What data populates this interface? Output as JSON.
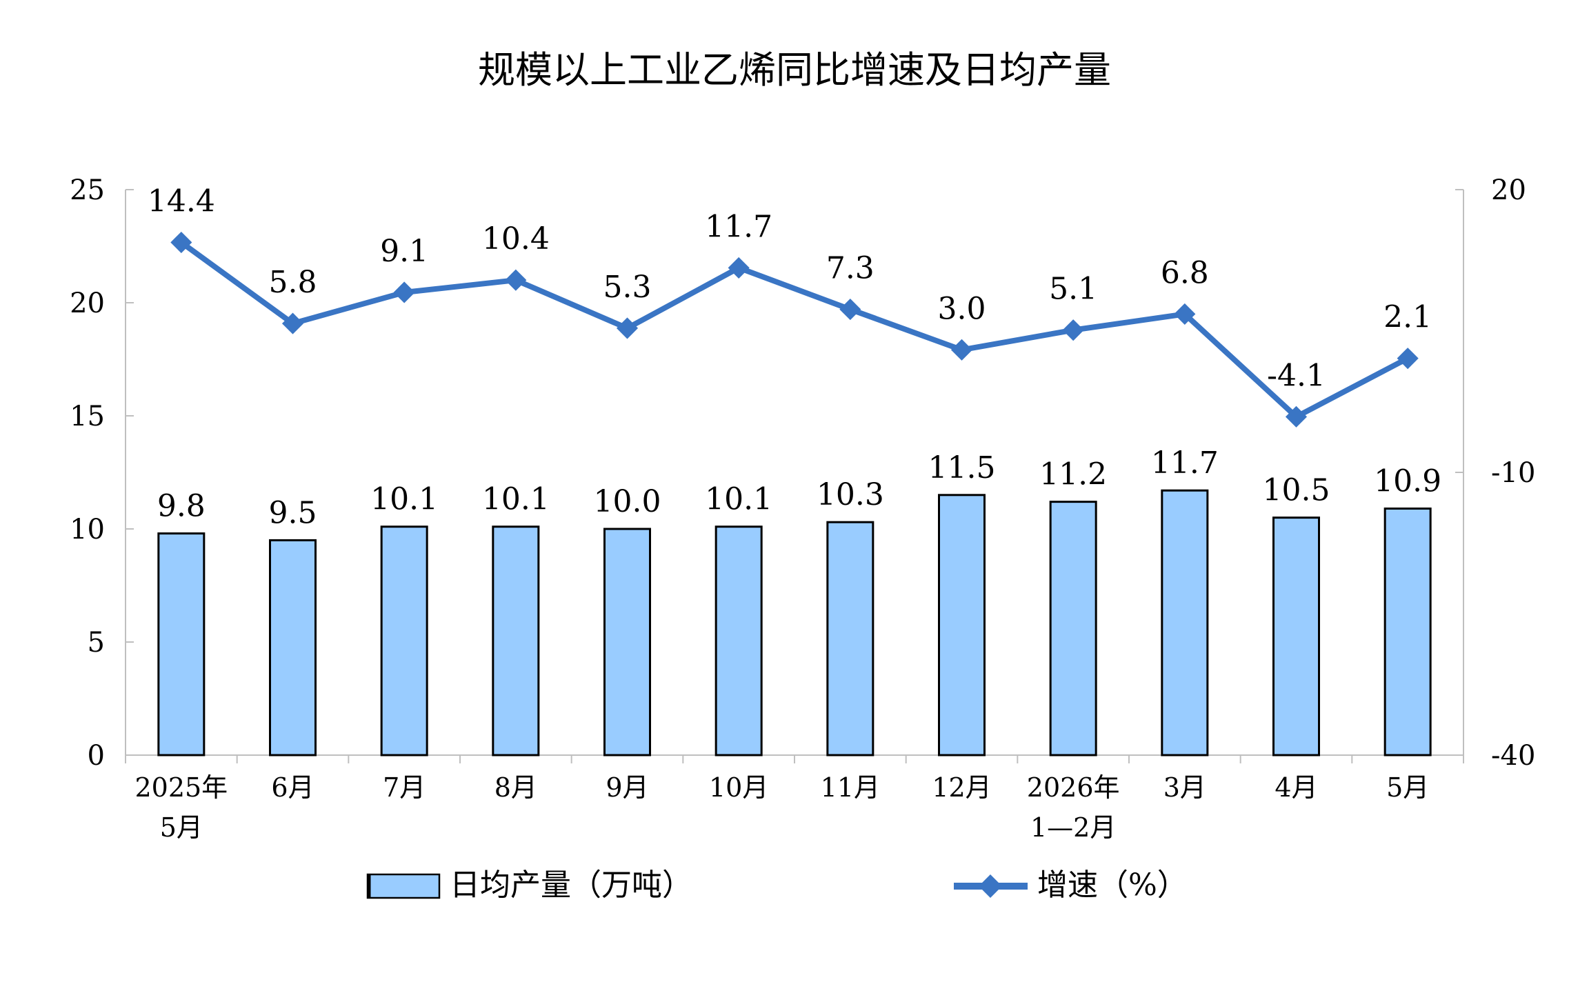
{
  "chart_data": {
    "type": "bar-line",
    "title": "规模以上工业乙烯同比增速及日均产量",
    "categories": [
      [
        "2025年",
        "5月"
      ],
      [
        "6月"
      ],
      [
        "7月"
      ],
      [
        "8月"
      ],
      [
        "9月"
      ],
      [
        "10月"
      ],
      [
        "11月"
      ],
      [
        "12月"
      ],
      [
        "2026年",
        "1—2月"
      ],
      [
        "3月"
      ],
      [
        "4月"
      ],
      [
        "5月"
      ]
    ],
    "series": [
      {
        "name": "日均产量（万吨）",
        "type": "bar",
        "axis": "left",
        "values": [
          9.8,
          9.5,
          10.1,
          10.1,
          10.0,
          10.1,
          10.3,
          11.5,
          11.2,
          11.7,
          10.5,
          10.9
        ],
        "labels": [
          "9.8",
          "9.5",
          "10.1",
          "10.1",
          "10.0",
          "10.1",
          "10.3",
          "11.5",
          "11.2",
          "11.7",
          "10.5",
          "10.9"
        ]
      },
      {
        "name": "增速（%）",
        "type": "line",
        "axis": "right",
        "values": [
          14.4,
          5.8,
          9.1,
          10.4,
          5.3,
          11.7,
          7.3,
          3.0,
          5.1,
          6.8,
          -4.1,
          2.1
        ],
        "labels": [
          "14.4",
          "5.8",
          "9.1",
          "10.4",
          "5.3",
          "11.7",
          "7.3",
          "3.0",
          "5.1",
          "6.8",
          "-4.1",
          "2.1"
        ]
      }
    ],
    "y_left": {
      "min": 0,
      "max": 25,
      "ticks": [
        0,
        5,
        10,
        15,
        20,
        25
      ]
    },
    "y_right": {
      "min": -40,
      "max": 20,
      "ticks": [
        -40,
        -10,
        20
      ]
    },
    "grid": false,
    "legend": "bottom",
    "colors": {
      "bar_fill": "#99CCFF",
      "bar_stroke": "#000000",
      "line": "#3A75C4",
      "axis": "#BFBFBF"
    }
  }
}
